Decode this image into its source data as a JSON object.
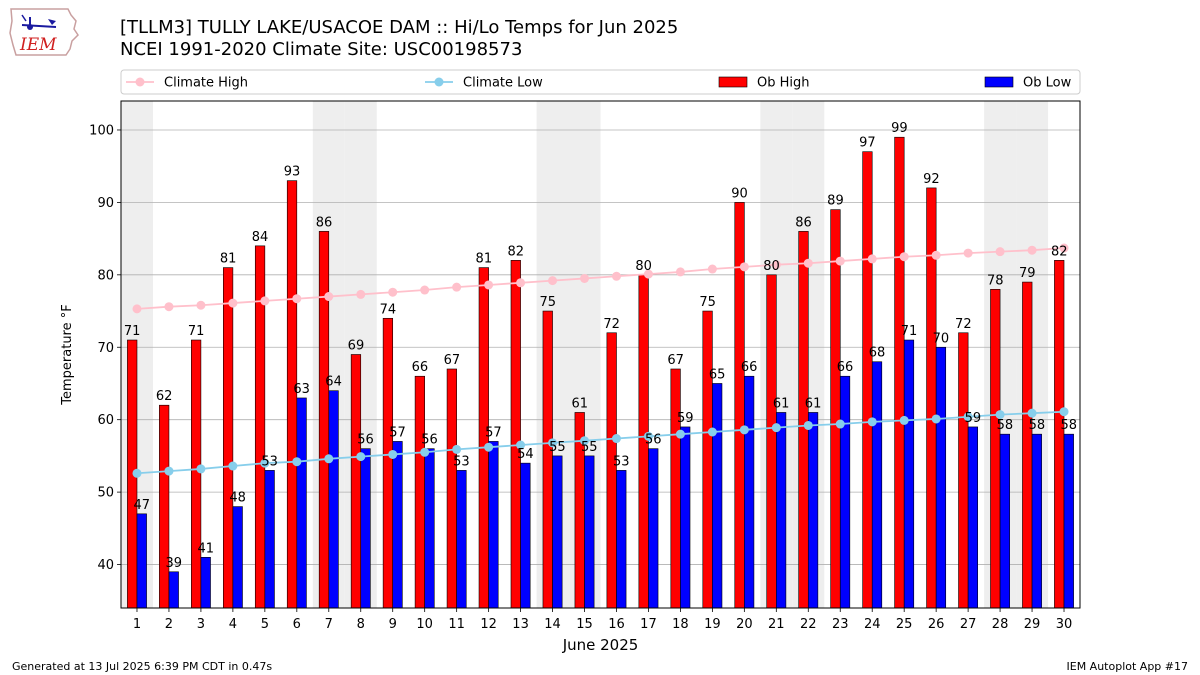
{
  "header": {
    "title_line1": "[TLLM3] TULLY LAKE/USACOE DAM :: Hi/Lo Temps for Jun 2025",
    "title_line2": "NCEI 1991-2020 Climate Site: USC00198573"
  },
  "logo": {
    "text": "IEM",
    "icon": "iowa-map-logo-icon"
  },
  "footer": {
    "left": "Generated at 13 Jul 2025 6:39 PM CDT in 0.47s",
    "right": "IEM Autoplot App #17"
  },
  "colors": {
    "ob_high": "#ff0000",
    "ob_low": "#0000ff",
    "climate_high": "#ffc0cb",
    "climate_low": "#87ceeb",
    "weekend_band": "#eeeeee",
    "grid": "#b0b0b0"
  },
  "chart_data": {
    "type": "bar",
    "xlabel": "June 2025",
    "ylabel": "Temperature °F",
    "ylim": [
      34,
      104
    ],
    "yticks": [
      40,
      50,
      60,
      70,
      80,
      90,
      100
    ],
    "grid": "horizontal",
    "legend_position": "top",
    "x": [
      1,
      2,
      3,
      4,
      5,
      6,
      7,
      8,
      9,
      10,
      11,
      12,
      13,
      14,
      15,
      16,
      17,
      18,
      19,
      20,
      21,
      22,
      23,
      24,
      25,
      26,
      27,
      28,
      29,
      30
    ],
    "weekend_days": [
      1,
      7,
      8,
      14,
      15,
      21,
      22,
      28,
      29
    ],
    "series": [
      {
        "name": "Climate High",
        "kind": "line",
        "values": [
          75.3,
          75.6,
          75.8,
          76.1,
          76.4,
          76.7,
          77.0,
          77.3,
          77.6,
          77.9,
          78.3,
          78.6,
          78.9,
          79.2,
          79.5,
          79.8,
          80.1,
          80.4,
          80.8,
          81.1,
          81.4,
          81.6,
          81.9,
          82.2,
          82.5,
          82.7,
          83.0,
          83.2,
          83.4,
          83.7
        ]
      },
      {
        "name": "Climate Low",
        "kind": "line",
        "values": [
          52.6,
          52.9,
          53.2,
          53.6,
          54.0,
          54.2,
          54.6,
          54.9,
          55.2,
          55.5,
          55.9,
          56.2,
          56.5,
          56.8,
          57.1,
          57.4,
          57.7,
          58.0,
          58.3,
          58.6,
          58.9,
          59.2,
          59.4,
          59.7,
          59.9,
          60.1,
          60.4,
          60.7,
          60.9,
          61.1
        ]
      },
      {
        "name": "Ob High",
        "kind": "bar",
        "values": [
          71,
          62,
          71,
          81,
          84,
          93,
          86,
          69,
          74,
          66,
          67,
          81,
          82,
          75,
          61,
          72,
          80,
          67,
          75,
          90,
          80,
          86,
          89,
          97,
          99,
          92,
          72,
          78,
          79,
          82
        ]
      },
      {
        "name": "Ob Low",
        "kind": "bar",
        "values": [
          47,
          39,
          41,
          48,
          53,
          63,
          64,
          56,
          57,
          56,
          53,
          57,
          54,
          55,
          55,
          53,
          56,
          59,
          65,
          66,
          61,
          61,
          66,
          68,
          71,
          70,
          59,
          58,
          58,
          58
        ]
      }
    ]
  }
}
